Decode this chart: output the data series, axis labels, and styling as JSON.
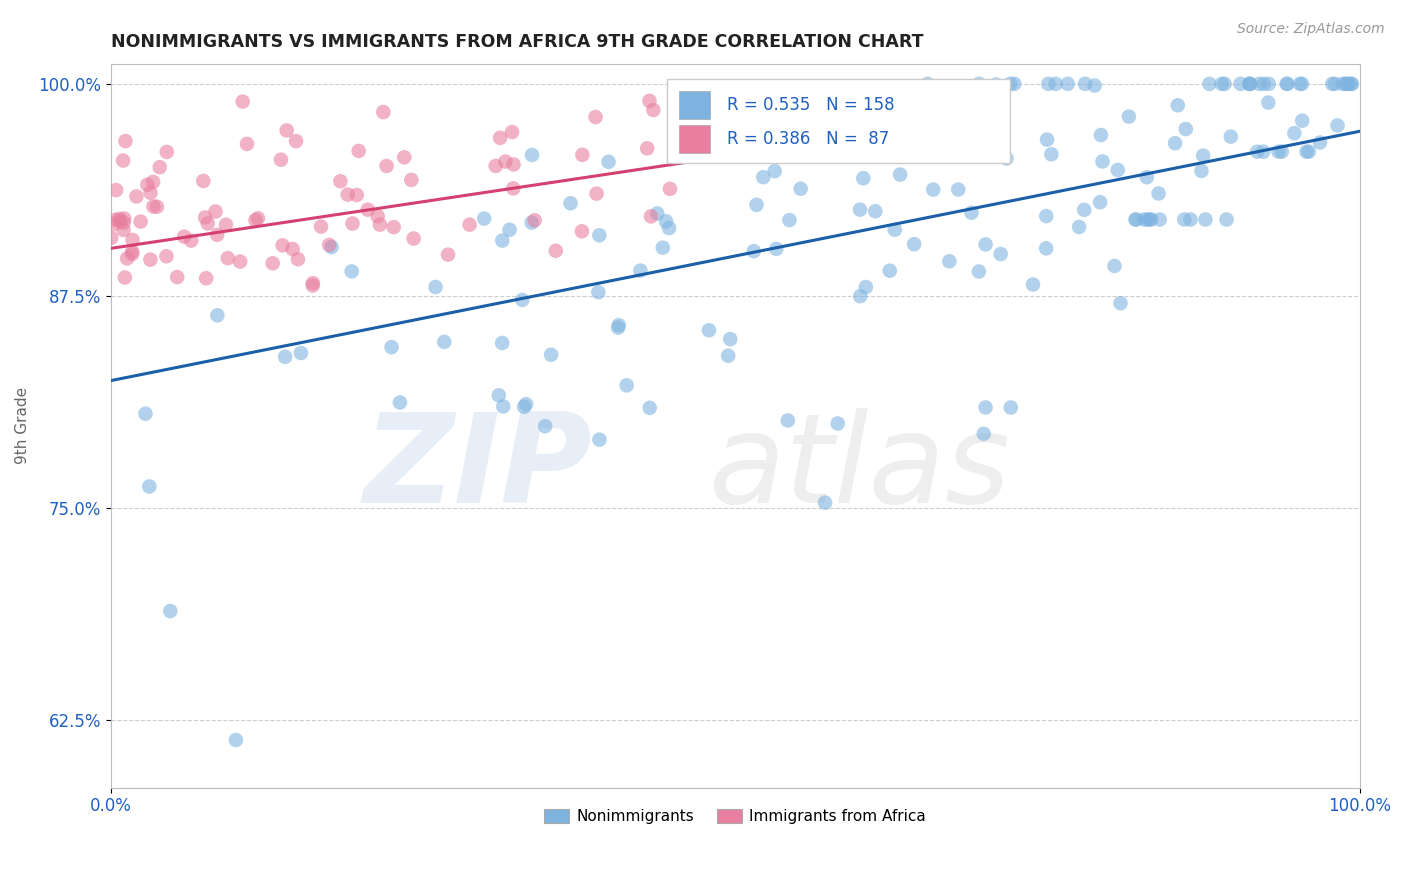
{
  "title": "NONIMMIGRANTS VS IMMIGRANTS FROM AFRICA 9TH GRADE CORRELATION CHART",
  "source_text": "Source: ZipAtlas.com",
  "ylabel": "9th Grade",
  "blue_R": 0.535,
  "blue_N": 158,
  "pink_R": 0.386,
  "pink_N": 87,
  "blue_color": "#7eb3e0",
  "pink_color": "#e87fa0",
  "blue_trend_color": "#1a5fa8",
  "pink_trend_color": "#d44070",
  "background_color": "#ffffff",
  "grid_color": "#c8c8c8",
  "legend_color": "#2060c0",
  "title_color": "#222222",
  "axis_tick_color": "#2060c0",
  "ylabel_color": "#666666",
  "source_color": "#999999",
  "watermark_zip_color": "#b0c8e8",
  "watermark_atlas_color": "#c8c8c8"
}
